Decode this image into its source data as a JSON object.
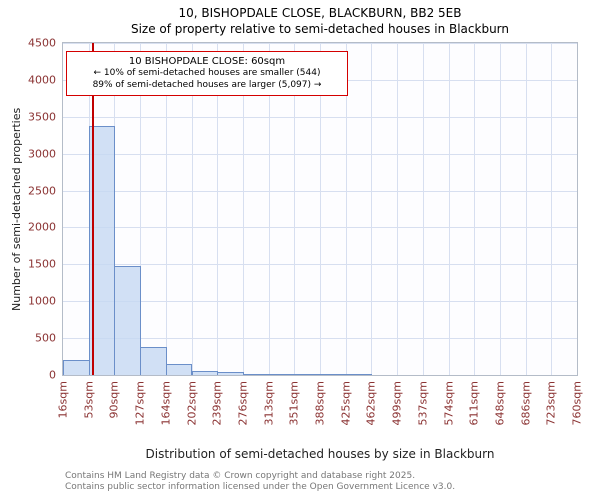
{
  "title": "10, BISHOPDALE CLOSE, BLACKBURN, BB2 5EB",
  "subtitle": "Size of property relative to semi-detached houses in Blackburn",
  "annotation": {
    "line1": "10 BISHOPDALE CLOSE: 60sqm",
    "line2": "← 10% of semi-detached houses are smaller (544)",
    "line3": "89% of semi-detached houses are larger (5,097) →"
  },
  "chart_data": {
    "type": "bar",
    "title": "10, BISHOPDALE CLOSE, BLACKBURN, BB2 5EB",
    "subtitle": "Size of property relative to semi-detached houses in Blackburn",
    "xlabel": "Distribution of semi-detached houses by size in Blackburn",
    "ylabel": "Number of semi-detached properties",
    "categories": [
      "16sqm",
      "53sqm",
      "90sqm",
      "127sqm",
      "164sqm",
      "202sqm",
      "239sqm",
      "276sqm",
      "313sqm",
      "351sqm",
      "388sqm",
      "425sqm",
      "462sqm",
      "499sqm",
      "537sqm",
      "574sqm",
      "611sqm",
      "648sqm",
      "686sqm",
      "723sqm",
      "760sqm"
    ],
    "values": [
      200,
      3380,
      1480,
      380,
      150,
      60,
      35,
      20,
      15,
      10,
      5,
      20,
      0,
      0,
      0,
      0,
      0,
      0,
      0,
      0
    ],
    "ylim": [
      0,
      4500
    ],
    "yticks": [
      0,
      500,
      1000,
      1500,
      2000,
      2500,
      3000,
      3500,
      4000,
      4500
    ],
    "grid": true,
    "legend": "none",
    "marker": {
      "label": "10 BISHOPDALE CLOSE",
      "value_sqm": 60,
      "xmin_sqm": 16,
      "xmax_sqm": 760,
      "color": "#c00000"
    },
    "bar_fill": "#c6d8f2",
    "bar_border": "#6b8fc9"
  },
  "footer": {
    "line1": "Contains HM Land Registry data © Crown copyright and database right 2025.",
    "line2": "Contains public sector information licensed under the Open Government Licence v3.0."
  }
}
